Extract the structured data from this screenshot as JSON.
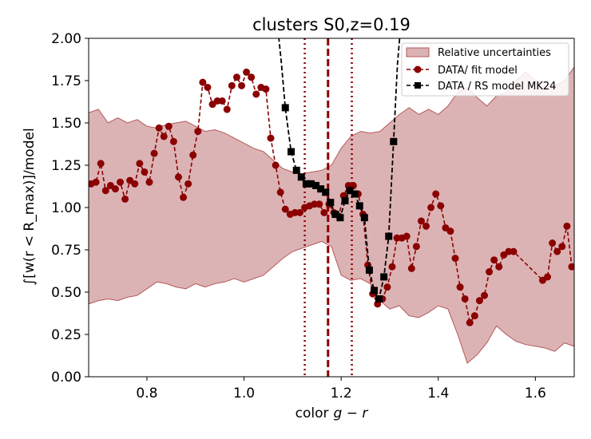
{
  "chart_data": {
    "type": "line",
    "title": "clusters S0,z=0.19",
    "xlabel_main": "color",
    "xlabel_math": "g − r",
    "ylabel": "∫[w(r < R_max)]/model",
    "xlim": [
      0.68,
      1.68
    ],
    "ylim": [
      0.0,
      2.0
    ],
    "x_ticks": [
      0.8,
      1.0,
      1.2,
      1.4,
      1.6
    ],
    "x_tick_labels": [
      "0.8",
      "1.0",
      "1.2",
      "1.4",
      "1.6"
    ],
    "y_ticks": [
      0.0,
      0.25,
      0.5,
      0.75,
      1.0,
      1.25,
      1.5,
      1.75,
      2.0
    ],
    "y_tick_labels": [
      "0.00",
      "0.25",
      "0.50",
      "0.75",
      "1.00",
      "1.25",
      "1.50",
      "1.75",
      "2.00"
    ],
    "grid": false,
    "legend_position": "top-right",
    "colors": {
      "band_fill": "#c98a8c",
      "band_edge": "#b5585c",
      "data_fit": "#8b0000",
      "rs_model": "#000000",
      "vline_center": "#8b0000",
      "vline_sides": "#8b0000"
    },
    "legend": [
      {
        "label": "Relative uncertainties",
        "kind": "band"
      },
      {
        "label": "DATA/ fit model",
        "kind": "circle-dashed"
      },
      {
        "label": "DATA / RS model MK24",
        "kind": "square-dashed"
      }
    ],
    "vlines": [
      {
        "x": 1.173,
        "style": "dashed",
        "label": "center"
      },
      {
        "x": 1.125,
        "style": "dotted",
        "label": "left"
      },
      {
        "x": 1.222,
        "style": "dotted",
        "label": "right"
      }
    ],
    "band": {
      "name": "Relative uncertainties",
      "x": [
        0.68,
        0.7,
        0.72,
        0.74,
        0.76,
        0.78,
        0.8,
        0.82,
        0.84,
        0.86,
        0.88,
        0.9,
        0.92,
        0.94,
        0.96,
        0.98,
        1.0,
        1.02,
        1.04,
        1.06,
        1.08,
        1.1,
        1.12,
        1.14,
        1.16,
        1.18,
        1.2,
        1.22,
        1.24,
        1.26,
        1.28,
        1.3,
        1.32,
        1.34,
        1.36,
        1.38,
        1.4,
        1.42,
        1.44,
        1.46,
        1.48,
        1.5,
        1.52,
        1.54,
        1.56,
        1.58,
        1.6,
        1.62,
        1.64,
        1.66,
        1.68
      ],
      "upper": [
        1.56,
        1.58,
        1.5,
        1.53,
        1.5,
        1.52,
        1.48,
        1.47,
        1.49,
        1.5,
        1.51,
        1.48,
        1.45,
        1.46,
        1.44,
        1.41,
        1.38,
        1.35,
        1.33,
        1.28,
        1.23,
        1.21,
        1.2,
        1.21,
        1.22,
        1.25,
        1.35,
        1.42,
        1.45,
        1.44,
        1.45,
        1.5,
        1.55,
        1.59,
        1.55,
        1.58,
        1.55,
        1.6,
        1.68,
        1.71,
        1.65,
        1.6,
        1.66,
        1.68,
        1.75,
        1.8,
        1.75,
        1.74,
        1.72,
        1.75,
        1.83
      ],
      "lower": [
        0.43,
        0.45,
        0.46,
        0.45,
        0.47,
        0.48,
        0.52,
        0.56,
        0.55,
        0.53,
        0.52,
        0.55,
        0.53,
        0.55,
        0.56,
        0.58,
        0.56,
        0.58,
        0.6,
        0.65,
        0.7,
        0.74,
        0.76,
        0.78,
        0.8,
        0.77,
        0.6,
        0.57,
        0.58,
        0.55,
        0.45,
        0.4,
        0.42,
        0.36,
        0.35,
        0.38,
        0.42,
        0.4,
        0.25,
        0.08,
        0.13,
        0.2,
        0.3,
        0.25,
        0.21,
        0.19,
        0.18,
        0.17,
        0.15,
        0.2,
        0.18
      ]
    },
    "series": [
      {
        "name": "DATA/ fit model",
        "style": "circle-dashed",
        "x": [
          0.685,
          0.695,
          0.705,
          0.715,
          0.725,
          0.735,
          0.745,
          0.755,
          0.765,
          0.775,
          0.785,
          0.795,
          0.805,
          0.815,
          0.825,
          0.835,
          0.845,
          0.855,
          0.865,
          0.875,
          0.885,
          0.895,
          0.905,
          0.915,
          0.925,
          0.935,
          0.945,
          0.955,
          0.965,
          0.975,
          0.985,
          0.995,
          1.005,
          1.015,
          1.025,
          1.035,
          1.045,
          1.055,
          1.065,
          1.075,
          1.085,
          1.095,
          1.105,
          1.115,
          1.125,
          1.135,
          1.145,
          1.155,
          1.165,
          1.175,
          1.185,
          1.195,
          1.205,
          1.215,
          1.225,
          1.235,
          1.245,
          1.255,
          1.265,
          1.275,
          1.285,
          1.295,
          1.305,
          1.315,
          1.325,
          1.335,
          1.345,
          1.355,
          1.365,
          1.375,
          1.385,
          1.395,
          1.405,
          1.415,
          1.425,
          1.435,
          1.445,
          1.455,
          1.465,
          1.475,
          1.485,
          1.495,
          1.505,
          1.515,
          1.525,
          1.535,
          1.545,
          1.555,
          1.615,
          1.625,
          1.635,
          1.645,
          1.655,
          1.665,
          1.675
        ],
        "y": [
          1.14,
          1.15,
          1.26,
          1.1,
          1.13,
          1.11,
          1.15,
          1.05,
          1.16,
          1.14,
          1.26,
          1.21,
          1.15,
          1.32,
          1.47,
          1.42,
          1.48,
          1.39,
          1.18,
          1.06,
          1.14,
          1.31,
          1.45,
          1.74,
          1.71,
          1.61,
          1.63,
          1.63,
          1.58,
          1.72,
          1.77,
          1.72,
          1.8,
          1.77,
          1.67,
          1.71,
          1.7,
          1.41,
          1.25,
          1.09,
          0.99,
          0.96,
          0.97,
          0.97,
          1.0,
          1.01,
          1.02,
          1.02,
          0.97,
          1.02,
          0.97,
          0.95,
          1.07,
          1.13,
          1.13,
          1.08,
          0.96,
          0.66,
          0.49,
          0.43,
          0.46,
          0.53,
          0.65,
          0.82,
          0.82,
          0.83,
          0.64,
          0.77,
          0.92,
          0.89,
          1.0,
          1.08,
          1.01,
          0.88,
          0.86,
          0.7,
          0.53,
          0.46,
          0.32,
          0.36,
          0.45,
          0.48,
          0.62,
          0.69,
          0.65,
          0.72,
          0.74,
          0.74,
          0.57,
          0.59,
          0.79,
          0.74,
          0.77,
          0.89,
          0.65
        ]
      },
      {
        "name": "DATA / RS model MK24",
        "style": "square-dashed",
        "x": [
          1.085,
          1.097,
          1.108,
          1.118,
          1.128,
          1.138,
          1.148,
          1.158,
          1.168,
          1.178,
          1.188,
          1.198,
          1.208,
          1.218,
          1.228,
          1.238,
          1.248,
          1.258,
          1.268,
          1.278,
          1.288,
          1.298,
          1.308
        ],
        "y": [
          1.59,
          1.33,
          1.22,
          1.18,
          1.14,
          1.14,
          1.13,
          1.11,
          1.09,
          1.03,
          0.96,
          0.94,
          1.04,
          1.1,
          1.08,
          1.01,
          0.94,
          0.63,
          0.51,
          0.46,
          0.59,
          0.83,
          1.39
        ],
        "extend_left": {
          "x": [
            1.07,
            1.077,
            1.085
          ],
          "y": [
            2.05,
            1.85,
            1.59
          ]
        },
        "extend_right": {
          "x": [
            1.308,
            1.316,
            1.322
          ],
          "y": [
            1.39,
            1.85,
            2.05
          ]
        }
      }
    ]
  }
}
